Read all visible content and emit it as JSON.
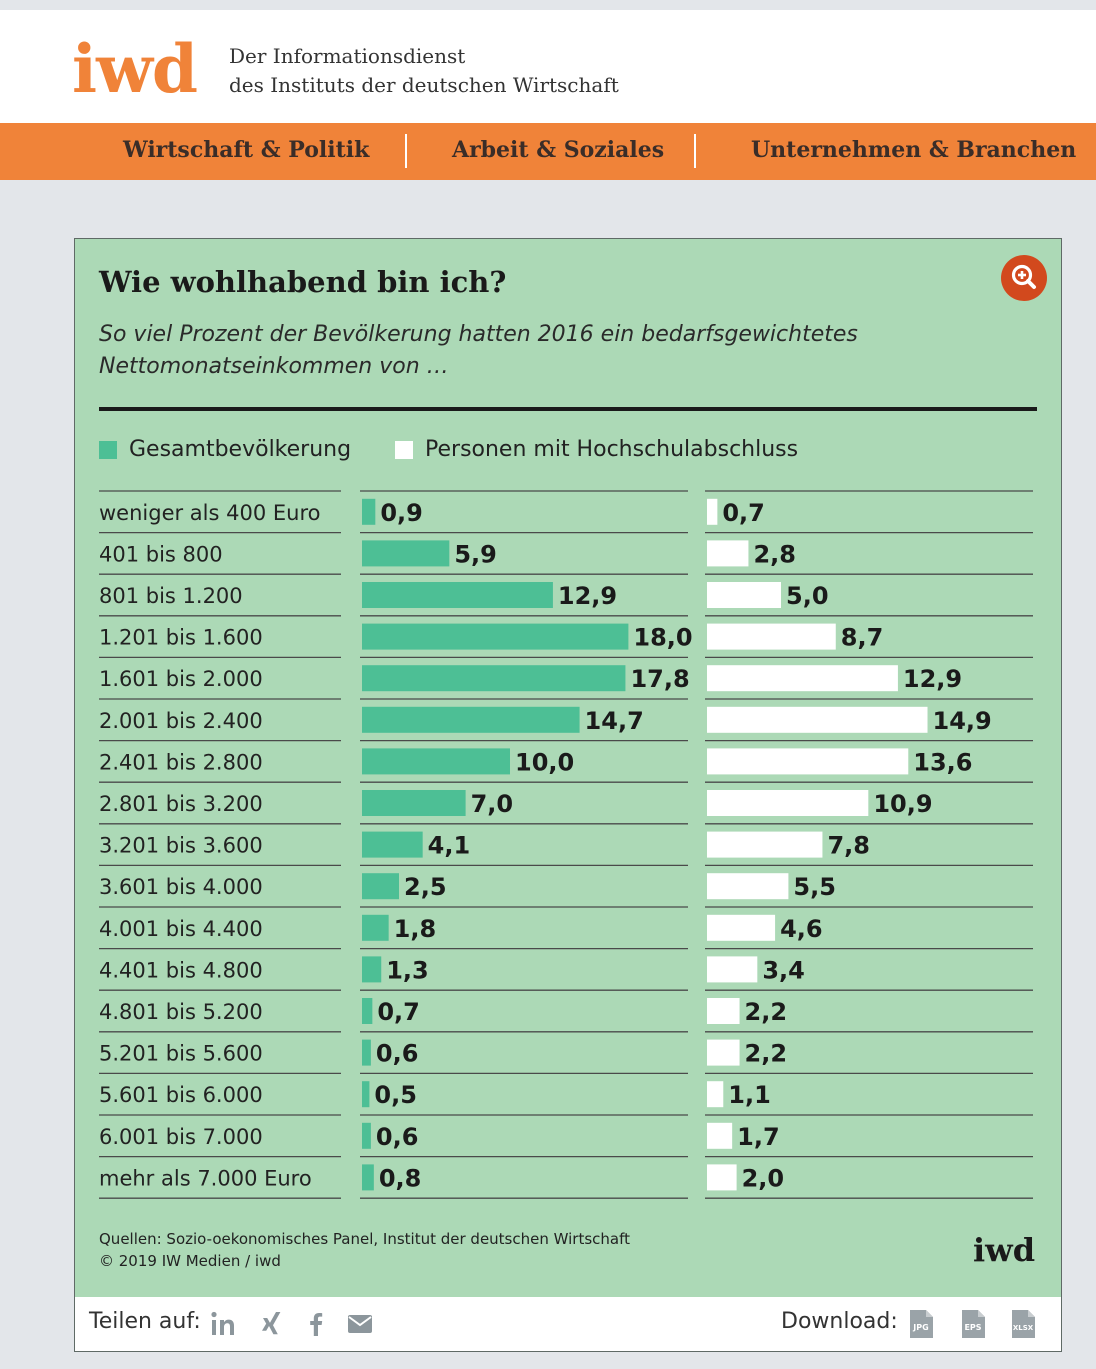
{
  "site": {
    "logo": "iwd",
    "tagline_line1": "Der Informationsdienst",
    "tagline_line2": "des Instituts der deutschen Wirtschaft"
  },
  "nav": {
    "items": [
      "Wirtschaft & Politik",
      "Arbeit & Soziales",
      "Unternehmen & Branchen"
    ]
  },
  "colors": {
    "accent": "#f08339",
    "card_background": "#acd9b6",
    "series_total": "#4dbf95",
    "series_graduates": "#ffffff",
    "zoom_button": "#d2491d"
  },
  "chart_data": {
    "type": "bar",
    "orientation": "horizontal",
    "title": "Wie wohlhabend bin ich?",
    "subtitle": "So viel Prozent der Bevölkerung hatten 2016 ein bedarfsgewichtetes Nettomonatseinkommen von …",
    "categories": [
      "weniger als 400 Euro",
      "401 bis 800",
      "801 bis 1.200",
      "1.201 bis 1.600",
      "1.601 bis 2.000",
      "2.001 bis 2.400",
      "2.401 bis 2.800",
      "2.801 bis 3.200",
      "3.201 bis 3.600",
      "3.601 bis 4.000",
      "4.001 bis 4.400",
      "4.401 bis 4.800",
      "4.801 bis 5.200",
      "5.201 bis 5.600",
      "5.601 bis 6.000",
      "6.001 bis 7.000",
      "mehr als 7.000 Euro"
    ],
    "series": [
      {
        "name": "Gesamtbevölkerung",
        "values": [
          0.9,
          5.9,
          12.9,
          18.0,
          17.8,
          14.7,
          10.0,
          7.0,
          4.1,
          2.5,
          1.8,
          1.3,
          0.7,
          0.6,
          0.5,
          0.6,
          0.8
        ],
        "labels": [
          "0,9",
          "5,9",
          "12,9",
          "18,0",
          "17,8",
          "14,7",
          "10,0",
          "7,0",
          "4,1",
          "2,5",
          "1,8",
          "1,3",
          "0,7",
          "0,6",
          "0,5",
          "0,6",
          "0,8"
        ]
      },
      {
        "name": "Personen mit Hochschulabschluss",
        "values": [
          0.7,
          2.8,
          5.0,
          8.7,
          12.9,
          14.9,
          13.6,
          10.9,
          7.8,
          5.5,
          4.6,
          3.4,
          2.2,
          2.2,
          1.1,
          1.7,
          2.0
        ],
        "labels": [
          "0,7",
          "2,8",
          "5,0",
          "8,7",
          "12,9",
          "14,9",
          "13,6",
          "10,9",
          "7,8",
          "5,5",
          "4,6",
          "3,4",
          "2,2",
          "2,2",
          "1,1",
          "1,7",
          "2,0"
        ]
      }
    ],
    "legend": "top-left",
    "source_line1": "Quellen: Sozio-oekonomisches Panel, Institut der deutschen Wirtschaft",
    "source_line2": "© 2019 IW Medien / iwd",
    "footer_logo": "iwd"
  },
  "share": {
    "label": "Teilen auf:",
    "icons": [
      "linkedin-icon",
      "xing-icon",
      "facebook-icon",
      "email-icon"
    ]
  },
  "download": {
    "label": "Download:",
    "formats": [
      "JPG",
      "EPS",
      "XLSX"
    ]
  },
  "zoom_icon": "zoom-in-icon"
}
